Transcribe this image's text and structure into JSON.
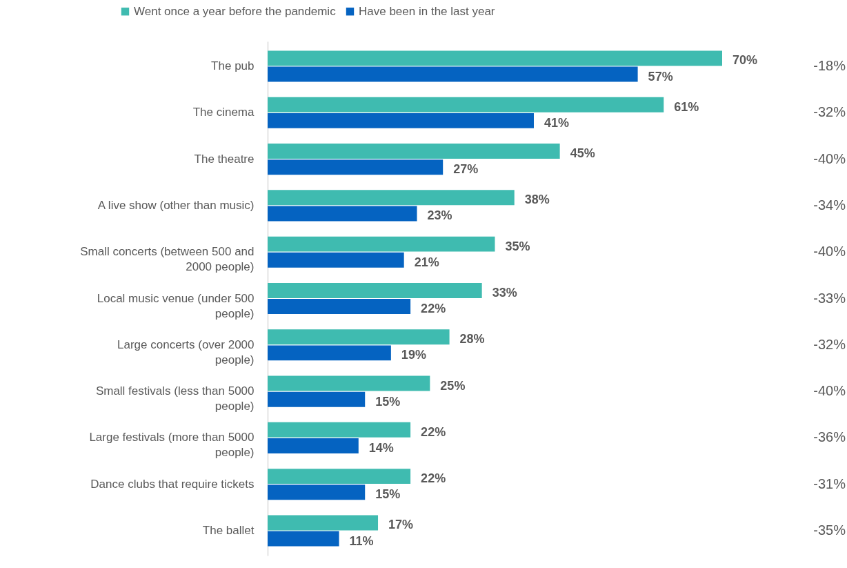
{
  "chart_data": {
    "type": "bar",
    "orientation": "horizontal",
    "legend": "top",
    "categories": [
      "The pub",
      "The cinema",
      "The theatre",
      "A live show (other than music)",
      "Small concerts (between 500 and 2000 people)",
      "Local music venue (under 500 people)",
      "Large concerts (over 2000 people)",
      "Small festivals (less than 5000 people)",
      "Large festivals (more than 5000 people)",
      "Dance clubs that require tickets",
      "The ballet"
    ],
    "series": [
      {
        "name": "Went once a year before the pandemic",
        "color": "#3fbbb0",
        "values": [
          70,
          61,
          45,
          38,
          35,
          33,
          28,
          25,
          22,
          22,
          17
        ],
        "value_labels": [
          "70%",
          "61%",
          "45%",
          "38%",
          "35%",
          "33%",
          "28%",
          "25%",
          "22%",
          "22%",
          "17%"
        ]
      },
      {
        "name": "Have been in the last year",
        "color": "#0563c1",
        "values": [
          57,
          41,
          27,
          23,
          21,
          22,
          19,
          15,
          14,
          15,
          11
        ],
        "value_labels": [
          "57%",
          "41%",
          "27%",
          "23%",
          "21%",
          "22%",
          "19%",
          "15%",
          "14%",
          "15%",
          "11%"
        ]
      }
    ],
    "annotations": [
      "-18%",
      "-32%",
      "-40%",
      "-34%",
      "-40%",
      "-33%",
      "-32%",
      "-40%",
      "-36%",
      "-31%",
      "-35%"
    ]
  }
}
